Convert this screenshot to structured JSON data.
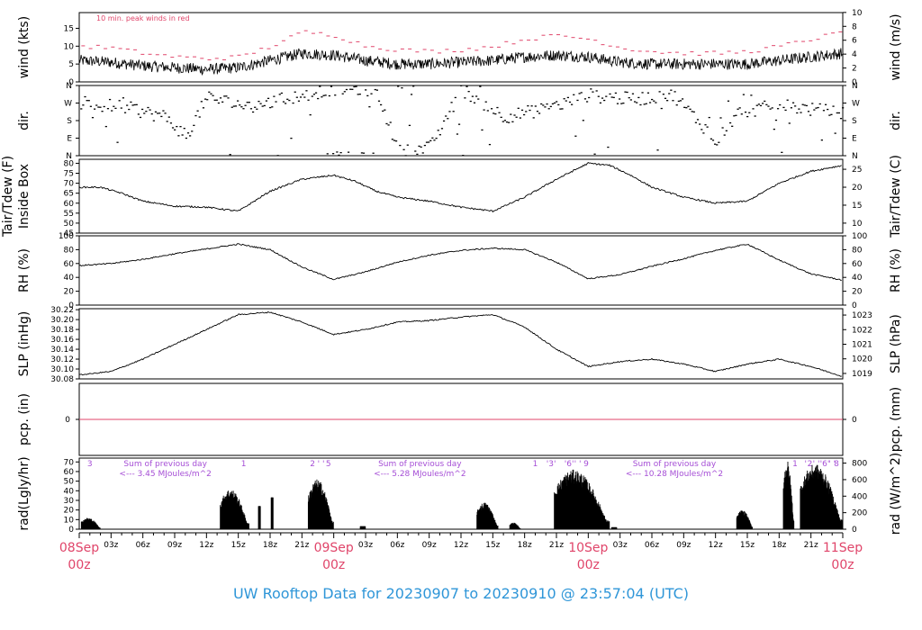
{
  "title": "UW Rooftop Data for 20230907  to  20230910 @ 23:57:04  (UTC)",
  "colors": {
    "peak": "#e0456a",
    "annotation": "#a64fd6",
    "title": "#2f96d8",
    "date": "#e0456a"
  },
  "x_axis": {
    "hour_labels": [
      "03z",
      "06z",
      "09z",
      "12z",
      "15z",
      "18z",
      "21z",
      "03z",
      "06z",
      "09z",
      "12z",
      "15z",
      "18z",
      "21z",
      "03z",
      "06z",
      "09z",
      "12z",
      "15z",
      "18z",
      "21z"
    ],
    "hour_positions_h": [
      3,
      6,
      9,
      12,
      15,
      18,
      21,
      27,
      30,
      33,
      36,
      39,
      42,
      45,
      51,
      54,
      57,
      60,
      63,
      66,
      69
    ],
    "dates": [
      {
        "day": "08Sep",
        "time": "00z",
        "h": 0
      },
      {
        "day": "09Sep",
        "time": "00z",
        "h": 24
      },
      {
        "day": "10Sep",
        "time": "00z",
        "h": 48
      },
      {
        "day": "11Sep",
        "time": "00z",
        "h": 72
      }
    ],
    "range_h": [
      0,
      72
    ]
  },
  "chart_data": [
    {
      "type": "line",
      "name": "wind",
      "ylabel_left": "wind (kts)",
      "ylabel_right": "wind (m/s)",
      "annotation": "10 min. peak winds in red",
      "ylim": [
        0,
        19.4
      ],
      "left_ticks": [
        0,
        5,
        10,
        15
      ],
      "right_ticks": [
        0,
        2,
        4,
        6,
        8,
        10
      ],
      "series": [
        {
          "name": "mean",
          "color": "#000000",
          "x": [
            0,
            3,
            6,
            9,
            12,
            15,
            18,
            21,
            24,
            27,
            30,
            33,
            36,
            39,
            42,
            45,
            48,
            51,
            54,
            57,
            60,
            63,
            66,
            69,
            72
          ],
          "y": [
            6,
            5.5,
            4.5,
            4,
            3.5,
            4,
            6,
            8,
            7.5,
            6,
            5,
            5,
            5.5,
            6,
            7,
            7.5,
            7,
            5.5,
            5,
            5,
            5,
            5,
            6,
            7,
            8
          ]
        },
        {
          "name": "peak",
          "color": "#e0456a",
          "x": [
            0,
            3,
            6,
            9,
            12,
            15,
            18,
            21,
            24,
            27,
            30,
            33,
            36,
            39,
            42,
            45,
            48,
            51,
            54,
            57,
            60,
            63,
            66,
            69,
            72
          ],
          "y": [
            10,
            9.5,
            8,
            7,
            6.5,
            7,
            10,
            14,
            13,
            10,
            9,
            8.5,
            9,
            10,
            12,
            13,
            12,
            9.5,
            8.5,
            8,
            8,
            8.5,
            10,
            12,
            14
          ]
        }
      ]
    },
    {
      "type": "scatter",
      "name": "dir",
      "ylabel_left": "dir.",
      "ylabel_right": "dir.",
      "left_ticks": [
        "N",
        "E",
        "S",
        "W",
        "N"
      ],
      "right_ticks": [
        "N",
        "E",
        "S",
        "W",
        "N"
      ],
      "ylim": [
        0,
        360
      ]
    },
    {
      "type": "line",
      "name": "temp",
      "ylabel_left": "Inside Box",
      "ylabel_left2": "Tair/Tdew (F)",
      "ylabel_right": "Tair/Tdew (C)",
      "ylim": [
        45,
        82
      ],
      "left_ticks": [
        45,
        50,
        55,
        60,
        65,
        70,
        75,
        80
      ],
      "right_ticks": [
        10,
        15,
        20,
        25
      ],
      "series": [
        {
          "name": "Tair",
          "x": [
            0,
            2,
            4,
            6,
            9,
            12,
            15,
            18,
            21,
            24,
            26,
            28,
            30,
            33,
            36,
            39,
            42,
            45,
            48,
            50,
            52,
            54,
            57,
            60,
            63,
            66,
            69,
            72
          ],
          "y": [
            68,
            68,
            65,
            61,
            58.5,
            58,
            56,
            66,
            72,
            74,
            71,
            66,
            63,
            61,
            58,
            56,
            63,
            72,
            80,
            79,
            74,
            68,
            63,
            60,
            61,
            70,
            76,
            79
          ]
        }
      ]
    },
    {
      "type": "line",
      "name": "rh",
      "ylabel_left": "RH (%)",
      "ylabel_right": "RH (%)",
      "ylim": [
        0,
        100
      ],
      "left_ticks": [
        0,
        20,
        40,
        60,
        80,
        100
      ],
      "right_ticks": [
        0,
        20,
        40,
        60,
        80,
        100
      ],
      "series": [
        {
          "name": "RH",
          "x": [
            0,
            3,
            6,
            9,
            12,
            15,
            18,
            21,
            24,
            27,
            30,
            33,
            36,
            39,
            42,
            45,
            48,
            51,
            54,
            57,
            60,
            63,
            66,
            69,
            72
          ],
          "y": [
            57,
            60,
            66,
            74,
            81,
            88,
            80,
            55,
            37,
            48,
            62,
            72,
            79,
            82,
            80,
            62,
            38,
            44,
            56,
            67,
            79,
            88,
            65,
            45,
            36
          ]
        }
      ]
    },
    {
      "type": "line",
      "name": "slp",
      "ylabel_left": "SLP (inHg)",
      "ylabel_right": "SLP (hPa)",
      "ylim": [
        30.08,
        30.222
      ],
      "left_ticks": [
        30.08,
        30.1,
        30.12,
        30.14,
        30.16,
        30.18,
        30.2,
        30.22
      ],
      "right_ticks": [
        1019,
        1020,
        1021,
        1022,
        1023
      ],
      "series": [
        {
          "name": "SLP",
          "x": [
            0,
            3,
            6,
            9,
            12,
            15,
            18,
            21,
            24,
            27,
            30,
            33,
            36,
            39,
            42,
            45,
            48,
            51,
            54,
            57,
            60,
            63,
            66,
            69,
            72
          ],
          "y": [
            30.088,
            30.095,
            30.12,
            30.15,
            30.18,
            30.21,
            30.215,
            30.195,
            30.17,
            30.18,
            30.195,
            30.198,
            30.205,
            30.21,
            30.185,
            30.14,
            30.105,
            30.115,
            30.12,
            30.11,
            30.095,
            30.11,
            30.12,
            30.105,
            30.085
          ]
        }
      ]
    },
    {
      "type": "line",
      "name": "pcp",
      "ylabel_left": "pcp. (in)",
      "ylabel_right": "pcp. (mm)",
      "left_ticks": [
        0
      ],
      "right_ticks": [
        0
      ],
      "series": [
        {
          "name": "precip",
          "x": [
            0,
            72
          ],
          "y": [
            0,
            0
          ]
        }
      ]
    },
    {
      "type": "area",
      "name": "rad",
      "ylabel_left": "rad(Lgly/hr)",
      "ylabel_right": "rad (W/m^2)",
      "ylim": [
        0,
        74
      ],
      "left_ticks": [
        0,
        10,
        20,
        30,
        40,
        50,
        60,
        70
      ],
      "right_ticks": [
        0,
        200,
        400,
        600,
        800
      ],
      "daily_sums": [
        {
          "label": "Sum of previous day",
          "value": "<--- 3.45 MJoules/m^2",
          "h": 6
        },
        {
          "label": "Sum of previous day",
          "value": "<--- 5.28 MJoules/m^2",
          "h": 30
        },
        {
          "label": "Sum of previous day",
          "value": "<--- 10.28 MJoules/m^2",
          "h": 54
        }
      ],
      "markers": [
        {
          "text": "3",
          "h": 1
        },
        {
          "text": "1",
          "h": 15.5
        },
        {
          "text": "2",
          "h": 22
        },
        {
          "text": "' '",
          "h": 22.8
        },
        {
          "text": "5",
          "h": 23.5
        },
        {
          "text": "1",
          "h": 43
        },
        {
          "text": "'3'",
          "h": 44.5
        },
        {
          "text": "'6'",
          "h": 46.2
        },
        {
          "text": "' '",
          "h": 47
        },
        {
          "text": "9",
          "h": 47.8
        },
        {
          "text": "1",
          "h": 67.5
        },
        {
          "text": "'",
          "h": 68.5
        },
        {
          "text": "2",
          "h": 68.9
        },
        {
          "text": "' '",
          "h": 69.5
        },
        {
          "text": "'6'",
          "h": 70.3
        },
        {
          "text": "' '",
          "h": 71
        },
        {
          "text": "8",
          "h": 71.4
        }
      ],
      "bursts": [
        {
          "start": 0.2,
          "end": 2,
          "peak": 12
        },
        {
          "start": 13.3,
          "end": 16,
          "peak": 42
        },
        {
          "start": 16.9,
          "end": 17.1,
          "peak": 24
        },
        {
          "start": 18.1,
          "end": 18.3,
          "peak": 33
        },
        {
          "start": 21.6,
          "end": 24,
          "peak": 52
        },
        {
          "start": 26.5,
          "end": 27,
          "peak": 3
        },
        {
          "start": 37.5,
          "end": 39.5,
          "peak": 28
        },
        {
          "start": 40.6,
          "end": 41.6,
          "peak": 7
        },
        {
          "start": 44.8,
          "end": 50,
          "peak": 62
        },
        {
          "start": 50.2,
          "end": 50.7,
          "peak": 2
        },
        {
          "start": 62,
          "end": 63.5,
          "peak": 20
        },
        {
          "start": 66.4,
          "end": 67.4,
          "peak": 72
        },
        {
          "start": 68,
          "end": 72,
          "peak": 68
        }
      ]
    }
  ]
}
